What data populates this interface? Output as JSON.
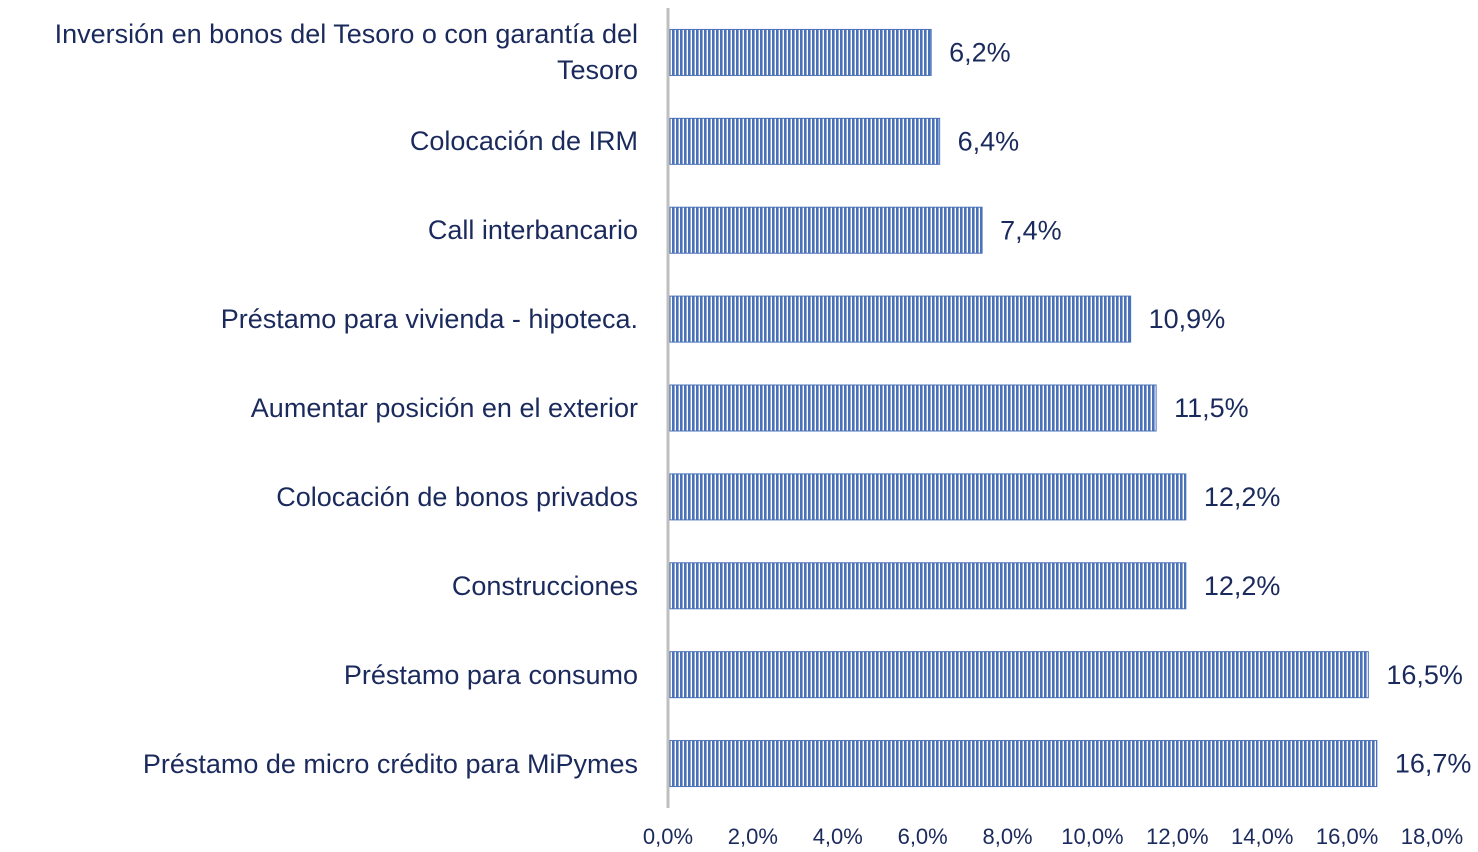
{
  "chart_data": {
    "type": "bar",
    "orientation": "horizontal",
    "color": "#4a72b8",
    "categories": [
      "Inversión en bonos del Tesoro o con garantía del Tesoro",
      "Colocación de IRM",
      "Call interbancario",
      "Préstamo para vivienda - hipoteca.",
      "Aumentar posición en el exterior",
      "Colocación de bonos privados",
      "Construcciones",
      "Préstamo para consumo",
      "Préstamo de micro crédito para MiPymes"
    ],
    "values": [
      6.2,
      6.4,
      7.4,
      10.9,
      11.5,
      12.2,
      12.2,
      16.5,
      16.7
    ],
    "value_labels": [
      "6,2%",
      "6,4%",
      "7,4%",
      "10,9%",
      "11,5%",
      "12,2%",
      "12,2%",
      "16,5%",
      "16,7%"
    ],
    "xlim": [
      0,
      18
    ],
    "xticks": [
      {
        "value": 0,
        "label": "0,0%"
      },
      {
        "value": 2,
        "label": "2,0%"
      },
      {
        "value": 4,
        "label": "4,0%"
      },
      {
        "value": 6,
        "label": "6,0%"
      },
      {
        "value": 8,
        "label": "8,0%"
      },
      {
        "value": 10,
        "label": "10,0%"
      },
      {
        "value": 12,
        "label": "12,0%"
      },
      {
        "value": 14,
        "label": "14,0%"
      },
      {
        "value": 16,
        "label": "16,0%"
      },
      {
        "value": 18,
        "label": "18,0%"
      }
    ]
  }
}
